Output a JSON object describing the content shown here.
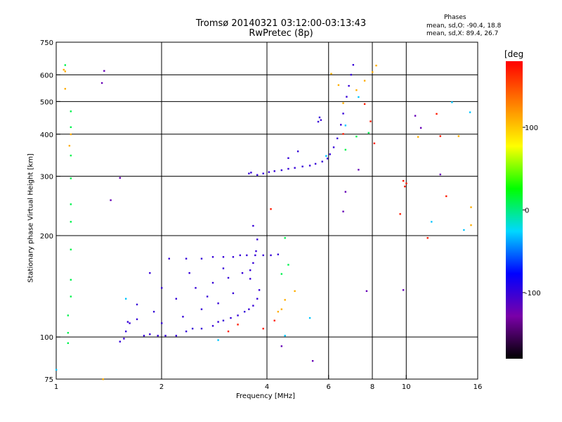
{
  "title": "Tromsø 20140321 03:12:00-03:13:43",
  "subtitle": "RwPretec (8p)",
  "stats": {
    "title": "Phases",
    "o_line": "mean, sd,O:  -90.4, 18.8",
    "x_line": "mean, sd,X:  89.4, 26.7"
  },
  "chart_data": {
    "type": "scatter",
    "xlabel": "Frequency [MHz]",
    "ylabel": "Stationary phase Virtual Height [km]",
    "xscale": "log",
    "yscale": "log",
    "xlim": [
      1,
      16
    ],
    "ylim": [
      75,
      750
    ],
    "xticks": [
      1,
      2,
      4,
      6,
      8,
      10,
      16
    ],
    "xtick_labels": [
      "1",
      "2",
      "4",
      "6",
      "8",
      "10",
      "16"
    ],
    "yticks": [
      75,
      100,
      200,
      300,
      400,
      500,
      600,
      750
    ],
    "ytick_labels": [
      "75",
      "100",
      "200",
      "300",
      "400",
      "500",
      "600",
      "750"
    ],
    "grid": true,
    "colorbar": {
      "label": "[deg",
      "ticks": [
        100,
        0,
        -100
      ],
      "tick_labels": [
        "100",
        "0",
        "-100"
      ],
      "range": [
        -180,
        180
      ],
      "colormap": [
        "#000000",
        "#7a00a8",
        "#0000ff",
        "#00d8ff",
        "#00ff00",
        "#ffff00",
        "#ff8000",
        "#ff0000"
      ]
    },
    "series": [
      {
        "color_value": -100,
        "points": [
          [
            1.52,
            97
          ],
          [
            1.56,
            99
          ],
          [
            1.58,
            104
          ],
          [
            1.62,
            110
          ],
          [
            1.7,
            113
          ],
          [
            1.78,
            101
          ],
          [
            1.85,
            102
          ],
          [
            1.95,
            101
          ],
          [
            2.05,
            101
          ],
          [
            2.2,
            101
          ],
          [
            2.35,
            104
          ],
          [
            2.45,
            106
          ],
          [
            2.6,
            106
          ],
          [
            2.8,
            108
          ],
          [
            2.9,
            111
          ],
          [
            3.0,
            112
          ],
          [
            3.15,
            114
          ],
          [
            3.3,
            116
          ],
          [
            3.45,
            119
          ],
          [
            3.55,
            121
          ],
          [
            3.65,
            124
          ],
          [
            3.75,
            130
          ],
          [
            3.8,
            138
          ],
          [
            3.58,
            149
          ],
          [
            3.58,
            158
          ],
          [
            3.65,
            166
          ],
          [
            3.72,
            180
          ],
          [
            3.75,
            195
          ],
          [
            3.65,
            214
          ],
          [
            3.55,
            306
          ],
          [
            3.6,
            308
          ],
          [
            3.75,
            303
          ],
          [
            3.9,
            306
          ],
          [
            4.05,
            309
          ],
          [
            4.2,
            311
          ],
          [
            4.4,
            313
          ],
          [
            4.6,
            316
          ],
          [
            4.8,
            318
          ],
          [
            5.05,
            321
          ],
          [
            5.3,
            323
          ],
          [
            5.5,
            327
          ],
          [
            5.75,
            332
          ],
          [
            5.95,
            339
          ],
          [
            6.05,
            349
          ],
          [
            6.2,
            366
          ],
          [
            6.35,
            389
          ],
          [
            6.5,
            427
          ],
          [
            6.6,
            461
          ],
          [
            6.75,
            517
          ],
          [
            6.85,
            557
          ],
          [
            6.95,
            601
          ],
          [
            7.05,
            643
          ],
          [
            1.85,
            155
          ],
          [
            2.1,
            171
          ],
          [
            2.35,
            171
          ],
          [
            2.6,
            171
          ],
          [
            2.8,
            173
          ],
          [
            3.0,
            173
          ],
          [
            3.2,
            173
          ],
          [
            3.35,
            175
          ],
          [
            3.5,
            175
          ],
          [
            3.7,
            175
          ],
          [
            3.9,
            175
          ],
          [
            4.1,
            175
          ],
          [
            4.3,
            176
          ],
          [
            2.0,
            110
          ],
          [
            2.3,
            115
          ],
          [
            2.6,
            121
          ],
          [
            2.9,
            126
          ],
          [
            3.2,
            135
          ],
          [
            1.7,
            125
          ],
          [
            2.2,
            130
          ],
          [
            2.5,
            140
          ],
          [
            2.8,
            145
          ],
          [
            3.1,
            150
          ],
          [
            3.4,
            155
          ],
          [
            2.0,
            140
          ],
          [
            2.4,
            155
          ],
          [
            3.0,
            160
          ],
          [
            1.6,
            111
          ],
          [
            1.9,
            119
          ],
          [
            2.7,
            132
          ],
          [
            5.6,
            436
          ],
          [
            5.65,
            449
          ],
          [
            5.7,
            441
          ],
          [
            4.9,
            356
          ],
          [
            4.6,
            340
          ]
        ]
      },
      {
        "color_value": 10,
        "points": [
          [
            1.08,
            116
          ],
          [
            1.08,
            96
          ],
          [
            1.08,
            103
          ],
          [
            1.1,
            132
          ],
          [
            1.1,
            148
          ],
          [
            1.1,
            182
          ],
          [
            1.1,
            220
          ],
          [
            1.1,
            248
          ],
          [
            1.1,
            296
          ],
          [
            1.1,
            346
          ],
          [
            1.1,
            420
          ],
          [
            1.1,
            468
          ],
          [
            4.5,
            197
          ],
          [
            4.4,
            154
          ],
          [
            4.6,
            164
          ],
          [
            6.7,
            360
          ],
          [
            7.2,
            394
          ],
          [
            7.8,
            404
          ],
          [
            1.06,
            642
          ]
        ]
      },
      {
        "color_value": 110,
        "points": [
          [
            1.06,
            546
          ],
          [
            1.06,
            615
          ],
          [
            1.05,
            622
          ],
          [
            1.36,
            75
          ],
          [
            1.09,
            370
          ],
          [
            1.1,
            400
          ],
          [
            4.3,
            119
          ],
          [
            4.4,
            121
          ],
          [
            4.5,
            129
          ],
          [
            4.8,
            137
          ],
          [
            6.1,
            605
          ],
          [
            6.4,
            560
          ],
          [
            6.6,
            495
          ],
          [
            7.2,
            541
          ],
          [
            7.6,
            577
          ],
          [
            8.0,
            612
          ],
          [
            8.2,
            640
          ],
          [
            10.8,
            393
          ],
          [
            14.1,
            395
          ],
          [
            15.3,
            243
          ],
          [
            15.3,
            215
          ]
        ]
      },
      {
        "color_value": 170,
        "points": [
          [
            11.5,
            197
          ],
          [
            12.2,
            460
          ],
          [
            13.0,
            262
          ],
          [
            12.5,
            395
          ],
          [
            6.6,
            401
          ],
          [
            7.6,
            492
          ],
          [
            7.9,
            437
          ],
          [
            8.1,
            376
          ],
          [
            9.6,
            232
          ],
          [
            9.8,
            291
          ],
          [
            9.9,
            280
          ],
          [
            10.0,
            286
          ],
          [
            4.1,
            240
          ],
          [
            3.9,
            106
          ],
          [
            4.2,
            112
          ],
          [
            3.3,
            109
          ],
          [
            3.1,
            104
          ]
        ]
      },
      {
        "color_value": -30,
        "points": [
          [
            1.0,
            80
          ],
          [
            1.58,
            130
          ],
          [
            2.9,
            98
          ],
          [
            4.5,
            101
          ],
          [
            5.3,
            114
          ],
          [
            5.9,
            345
          ],
          [
            6.7,
            425
          ],
          [
            7.3,
            516
          ],
          [
            11.8,
            220
          ],
          [
            13.5,
            498
          ],
          [
            15.2,
            465
          ],
          [
            14.6,
            208
          ]
        ]
      },
      {
        "color_value": -120,
        "points": [
          [
            1.43,
            255
          ],
          [
            1.52,
            297
          ],
          [
            1.35,
            568
          ],
          [
            1.37,
            617
          ],
          [
            11.0,
            418
          ],
          [
            12.5,
            304
          ],
          [
            10.6,
            454
          ],
          [
            5.4,
            85
          ],
          [
            4.4,
            94
          ],
          [
            6.6,
            236
          ],
          [
            7.7,
            137
          ],
          [
            7.3,
            314
          ],
          [
            6.7,
            270
          ],
          [
            9.8,
            138
          ]
        ]
      }
    ]
  }
}
